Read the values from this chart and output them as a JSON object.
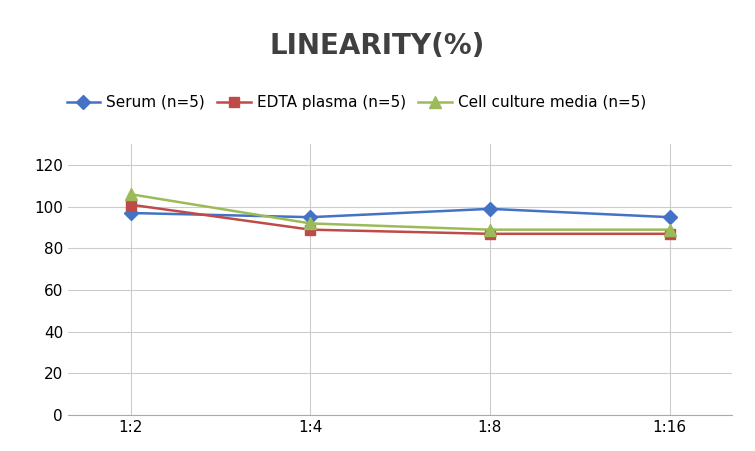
{
  "title": "LINEARITY(%)",
  "title_fontsize": 20,
  "title_fontweight": "bold",
  "title_color": "#404040",
  "x_labels": [
    "1:2",
    "1:4",
    "1:8",
    "1:16"
  ],
  "x_positions": [
    0,
    1,
    2,
    3
  ],
  "serum": [
    97,
    95,
    99,
    95
  ],
  "edta": [
    101,
    89,
    87,
    87
  ],
  "cell_culture": [
    106,
    92,
    89,
    89
  ],
  "serum_color": "#4472C4",
  "edta_color": "#BE4B48",
  "cell_color": "#9BBB59",
  "serum_label": "Serum (n=5)",
  "edta_label": "EDTA plasma (n=5)",
  "cell_label": "Cell culture media (n=5)",
  "ylim": [
    0,
    130
  ],
  "yticks": [
    0,
    20,
    40,
    60,
    80,
    100,
    120
  ],
  "bg_color": "#FFFFFF",
  "grid_color": "#CCCCCC",
  "legend_fontsize": 11,
  "tick_fontsize": 11,
  "marker_serum": "D",
  "marker_edta": "s",
  "marker_cell": "^",
  "linewidth": 1.8,
  "markersize": 7
}
